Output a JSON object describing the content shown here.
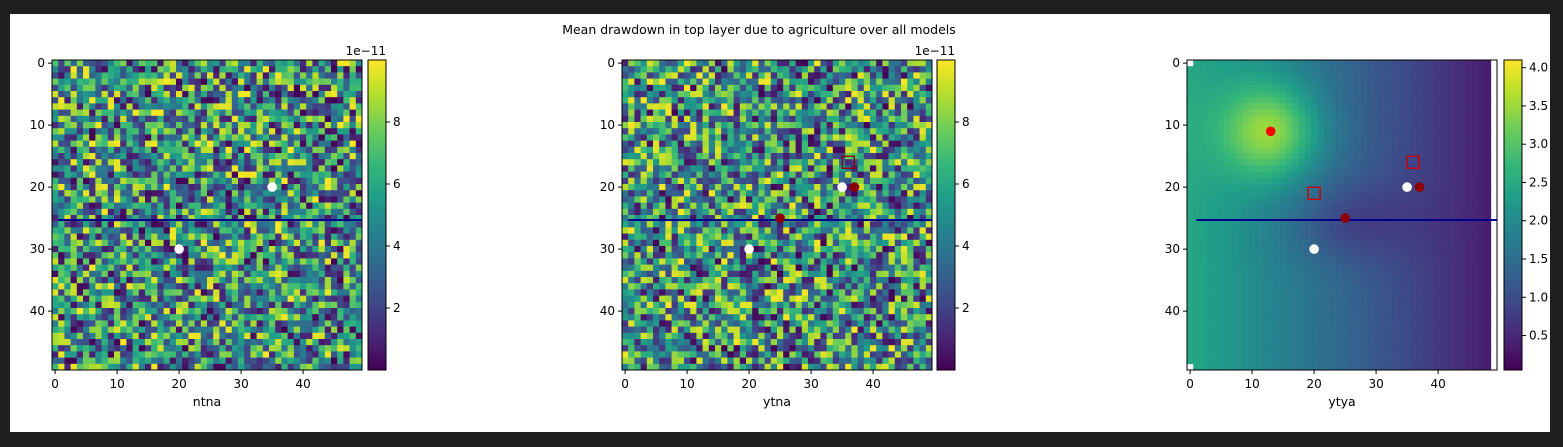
{
  "figure": {
    "suptitle": "Mean drawdown in top layer due to agriculture over all models"
  },
  "chart_data": [
    {
      "type": "heatmap",
      "xlabel": "ntna",
      "ylabel": "",
      "grid_size": [
        50,
        50
      ],
      "field": "noise",
      "xlim": [
        0,
        49
      ],
      "ylim": [
        49,
        0
      ],
      "xticks": [
        "0",
        "10",
        "20",
        "30",
        "40"
      ],
      "yticks": [
        "0",
        "10",
        "20",
        "30",
        "40"
      ],
      "colorbar": {
        "min": 0.0,
        "max": 1.0,
        "ticks": [
          {
            "v": 0.2,
            "label": "2"
          },
          {
            "v": 0.4,
            "label": "4"
          },
          {
            "v": 0.6,
            "label": "6"
          },
          {
            "v": 0.8,
            "label": "8"
          }
        ],
        "offset_text": "1e−11"
      },
      "hline": {
        "y": 25.3,
        "x": [
          0.5,
          49.5
        ],
        "color": "#00008b"
      },
      "masked": false,
      "points": [
        {
          "x": 35,
          "y": 20,
          "marker": "circle",
          "color": "#ffffff"
        },
        {
          "x": 20,
          "y": 30,
          "marker": "circle",
          "color": "#ffffff"
        }
      ]
    },
    {
      "type": "heatmap",
      "xlabel": "ytna",
      "ylabel": "",
      "grid_size": [
        50,
        50
      ],
      "field": "noise",
      "xlim": [
        0,
        49
      ],
      "ylim": [
        49,
        0
      ],
      "xticks": [
        "0",
        "10",
        "20",
        "30",
        "40"
      ],
      "yticks": [
        "0",
        "10",
        "20",
        "30",
        "40"
      ],
      "colorbar": {
        "min": 0.0,
        "max": 1.0,
        "ticks": [
          {
            "v": 0.2,
            "label": "2"
          },
          {
            "v": 0.4,
            "label": "4"
          },
          {
            "v": 0.6,
            "label": "6"
          },
          {
            "v": 0.8,
            "label": "8"
          }
        ],
        "offset_text": "1e−11"
      },
      "hline": {
        "y": 25.3,
        "x": [
          0.5,
          49.5
        ],
        "color": "#00008b"
      },
      "masked": false,
      "points": [
        {
          "x": 36,
          "y": 16,
          "marker": "square",
          "color": "#8b0000"
        },
        {
          "x": 35,
          "y": 20,
          "marker": "circle",
          "color": "#ffffff"
        },
        {
          "x": 37,
          "y": 20,
          "marker": "circle",
          "color": "#8b0000"
        },
        {
          "x": 25,
          "y": 25,
          "marker": "circle",
          "color": "#8b0000"
        },
        {
          "x": 20,
          "y": 30,
          "marker": "circle",
          "color": "#ffffff"
        }
      ]
    },
    {
      "type": "heatmap",
      "xlabel": "ytya",
      "ylabel": "",
      "grid_size": [
        50,
        50
      ],
      "field": "drawdown",
      "xlim": [
        0,
        49
      ],
      "ylim": [
        49,
        0
      ],
      "xticks": [
        "0",
        "10",
        "20",
        "30",
        "40"
      ],
      "yticks": [
        "0",
        "10",
        "20",
        "30",
        "40"
      ],
      "colorbar": {
        "min": 0.05,
        "max": 4.1,
        "ticks": [
          {
            "v": 0.5,
            "label": "0.5"
          },
          {
            "v": 1.0,
            "label": "1.0"
          },
          {
            "v": 1.5,
            "label": "1.5"
          },
          {
            "v": 2.0,
            "label": "2.0"
          },
          {
            "v": 2.5,
            "label": "2.5"
          },
          {
            "v": 3.0,
            "label": "3.0"
          },
          {
            "v": 3.5,
            "label": "3.5"
          },
          {
            "v": 4.0,
            "label": "4.0"
          }
        ],
        "offset_text": ""
      },
      "hline": {
        "y": 25.3,
        "x": [
          1,
          49.5
        ],
        "color": "#00008b"
      },
      "masked": true,
      "points": [
        {
          "x": 13,
          "y": 11,
          "marker": "circle",
          "color": "#ff0000"
        },
        {
          "x": 36,
          "y": 16,
          "marker": "square",
          "color": "#cc0000"
        },
        {
          "x": 20,
          "y": 21,
          "marker": "square",
          "color": "#cc0000"
        },
        {
          "x": 35,
          "y": 20,
          "marker": "circle",
          "color": "#ffffff"
        },
        {
          "x": 37,
          "y": 20,
          "marker": "circle",
          "color": "#8b0000"
        },
        {
          "x": 25,
          "y": 25,
          "marker": "circle",
          "color": "#8b0000"
        },
        {
          "x": 20,
          "y": 30,
          "marker": "circle",
          "color": "#ffffff"
        }
      ]
    }
  ]
}
